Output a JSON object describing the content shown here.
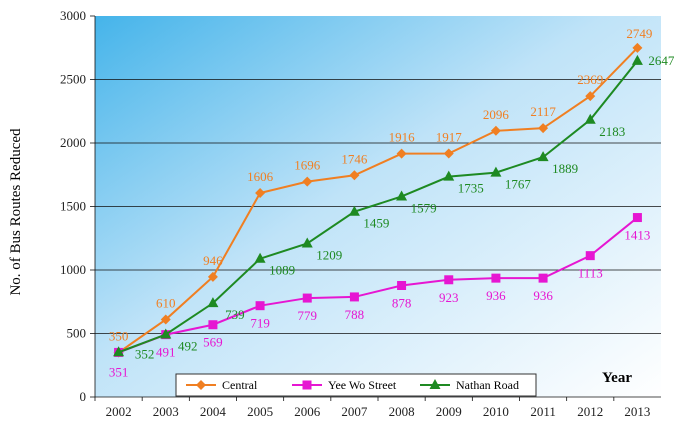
{
  "chart_data": {
    "type": "line",
    "title": "",
    "xlabel": "Year",
    "ylabel": "No. of Bus Routes Reduced",
    "ylim": [
      0,
      3000
    ],
    "yticks": [
      0,
      500,
      1000,
      1500,
      2000,
      2500,
      3000
    ],
    "grid": true,
    "legend_position": "bottom",
    "categories": [
      "2002",
      "2003",
      "2004",
      "2005",
      "2006",
      "2007",
      "2008",
      "2009",
      "2010",
      "2011",
      "2012",
      "2013"
    ],
    "series": [
      {
        "name": "Central",
        "color": "#f07f22",
        "marker": "diamond",
        "values": [
          350,
          610,
          946,
          1606,
          1696,
          1746,
          1916,
          1917,
          2096,
          2117,
          2369,
          2749
        ],
        "labels": [
          "350",
          "610",
          "946",
          "1606",
          "1696",
          "1746",
          "1916",
          "1917",
          "2096",
          "2117",
          "2369",
          "2749"
        ]
      },
      {
        "name": "Yee Wo Street",
        "color": "#e616d2",
        "marker": "square",
        "values": [
          351,
          491,
          569,
          719,
          779,
          788,
          878,
          923,
          936,
          936,
          1113,
          1413
        ],
        "labels": [
          "351",
          "491",
          "569",
          "719",
          "779",
          "788",
          "878",
          "923",
          "936",
          "936",
          "1113",
          "1413"
        ]
      },
      {
        "name": "Nathan Road",
        "color": "#1e8a22",
        "marker": "triangle",
        "values": [
          352,
          492,
          739,
          1089,
          1209,
          1459,
          1579,
          1735,
          1767,
          1889,
          2183,
          2647
        ],
        "labels": [
          "352",
          "492",
          "739",
          "1089",
          "1209",
          "1459",
          "1579",
          "1735",
          "1767",
          "1889",
          "2183",
          "2647"
        ]
      }
    ]
  }
}
